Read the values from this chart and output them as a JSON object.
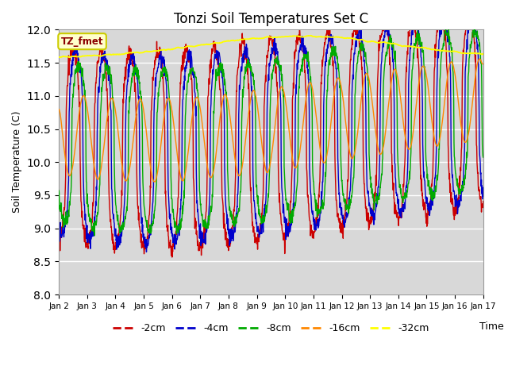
{
  "title": "Tonzi Soil Temperatures Set C",
  "xlabel": "Time",
  "ylabel": "Soil Temperature (C)",
  "ylim": [
    8.0,
    12.0
  ],
  "yticks": [
    8.0,
    8.5,
    9.0,
    9.5,
    10.0,
    10.5,
    11.0,
    11.5,
    12.0
  ],
  "xtick_labels": [
    "Jan 2",
    "Jan 3",
    "Jan 4",
    "Jan 5",
    "Jan 6",
    "Jan 7",
    "Jan 8",
    "Jan 9",
    "Jan 10",
    "Jan 11",
    "Jan 12",
    "Jan 13",
    "Jan 14",
    "Jan 15",
    "Jan 16",
    "Jan 17"
  ],
  "colors": {
    "-2cm": "#cc0000",
    "-4cm": "#0000cc",
    "-8cm": "#00aa00",
    "-16cm": "#ff8800",
    "-32cm": "#ffff00"
  },
  "legend_label": "TZ_fmet",
  "background_color": "#d8d8d8",
  "n_points": 1440
}
